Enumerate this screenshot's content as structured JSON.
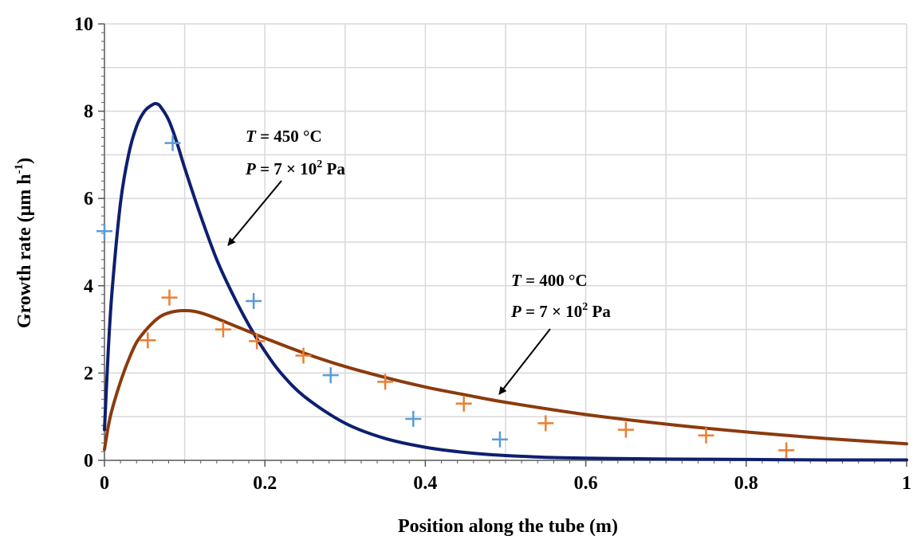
{
  "chart_data": {
    "type": "scatter",
    "xlabel": "Position along the tube (m)",
    "ylabel_main": "Growth rate (μm h",
    "ylabel_sup": "-1",
    "ylabel_end": ")",
    "xlim": [
      0,
      1
    ],
    "ylim": [
      0,
      10
    ],
    "x_ticks": [
      0,
      0.2,
      0.4,
      0.6,
      0.8,
      1
    ],
    "x_tick_labels": [
      "0",
      "0.2",
      "0.4",
      "0.6",
      "0.8",
      "1"
    ],
    "y_ticks": [
      0,
      2,
      4,
      6,
      8,
      10
    ],
    "y_tick_labels": [
      "0",
      "2",
      "4",
      "6",
      "8",
      "10"
    ],
    "grid": true,
    "colors": {
      "model_450": "#0d1f6e",
      "model_400": "#8b3a0e",
      "data_450": "#5b9bd5",
      "data_400": "#ed7d31",
      "grid": "#d9d9d9"
    },
    "series": [
      {
        "kind": "line",
        "color_key": "model_450",
        "x": [
          0,
          0.005,
          0.01,
          0.02,
          0.03,
          0.04,
          0.05,
          0.06,
          0.065,
          0.07,
          0.08,
          0.09,
          0.1,
          0.12,
          0.14,
          0.16,
          0.18,
          0.2,
          0.22,
          0.25,
          0.3,
          0.35,
          0.4,
          0.45,
          0.5,
          0.55,
          0.6,
          0.7,
          0.8,
          0.9,
          1.0
        ],
        "y": [
          0.7,
          2.6,
          4.0,
          5.9,
          7.0,
          7.65,
          8.0,
          8.15,
          8.17,
          8.1,
          7.8,
          7.3,
          6.7,
          5.6,
          4.6,
          3.8,
          3.1,
          2.5,
          2.0,
          1.45,
          0.85,
          0.5,
          0.3,
          0.18,
          0.11,
          0.07,
          0.05,
          0.03,
          0.02,
          0.01,
          0.01
        ]
      },
      {
        "kind": "line",
        "color_key": "model_400",
        "x": [
          0,
          0.005,
          0.01,
          0.02,
          0.03,
          0.04,
          0.05,
          0.06,
          0.07,
          0.08,
          0.09,
          0.1,
          0.11,
          0.12,
          0.14,
          0.16,
          0.18,
          0.2,
          0.25,
          0.3,
          0.35,
          0.4,
          0.45,
          0.5,
          0.6,
          0.7,
          0.8,
          0.9,
          1.0
        ],
        "y": [
          0.25,
          0.8,
          1.2,
          1.8,
          2.3,
          2.7,
          2.95,
          3.15,
          3.3,
          3.38,
          3.42,
          3.43,
          3.42,
          3.38,
          3.25,
          3.1,
          2.95,
          2.8,
          2.45,
          2.15,
          1.9,
          1.68,
          1.5,
          1.33,
          1.05,
          0.83,
          0.65,
          0.5,
          0.38
        ]
      },
      {
        "kind": "marker",
        "color_key": "data_450",
        "x": [
          0,
          0.085,
          0.186,
          0.282,
          0.385,
          0.493
        ],
        "y": [
          5.25,
          7.27,
          3.65,
          1.95,
          0.95,
          0.48
        ]
      },
      {
        "kind": "marker",
        "color_key": "data_400",
        "x": [
          0.054,
          0.081,
          0.148,
          0.19,
          0.248,
          0.35,
          0.448,
          0.55,
          0.65,
          0.75,
          0.85
        ],
        "y": [
          2.75,
          3.73,
          3.0,
          2.73,
          2.4,
          1.8,
          1.3,
          0.85,
          0.7,
          0.57,
          0.23
        ]
      }
    ],
    "annotations": [
      {
        "line1_var": "T",
        "line1_rest": " = 450 °C",
        "line2_var": "P",
        "line2_rest": " = 7 × 10",
        "line2_sup": "2",
        "line2_unit": " Pa"
      },
      {
        "line1_var": "T",
        "line1_rest": " = 400 °C",
        "line2_var": "P",
        "line2_rest": " = 7 × 10",
        "line2_sup": "2",
        "line2_unit": " Pa"
      }
    ]
  }
}
